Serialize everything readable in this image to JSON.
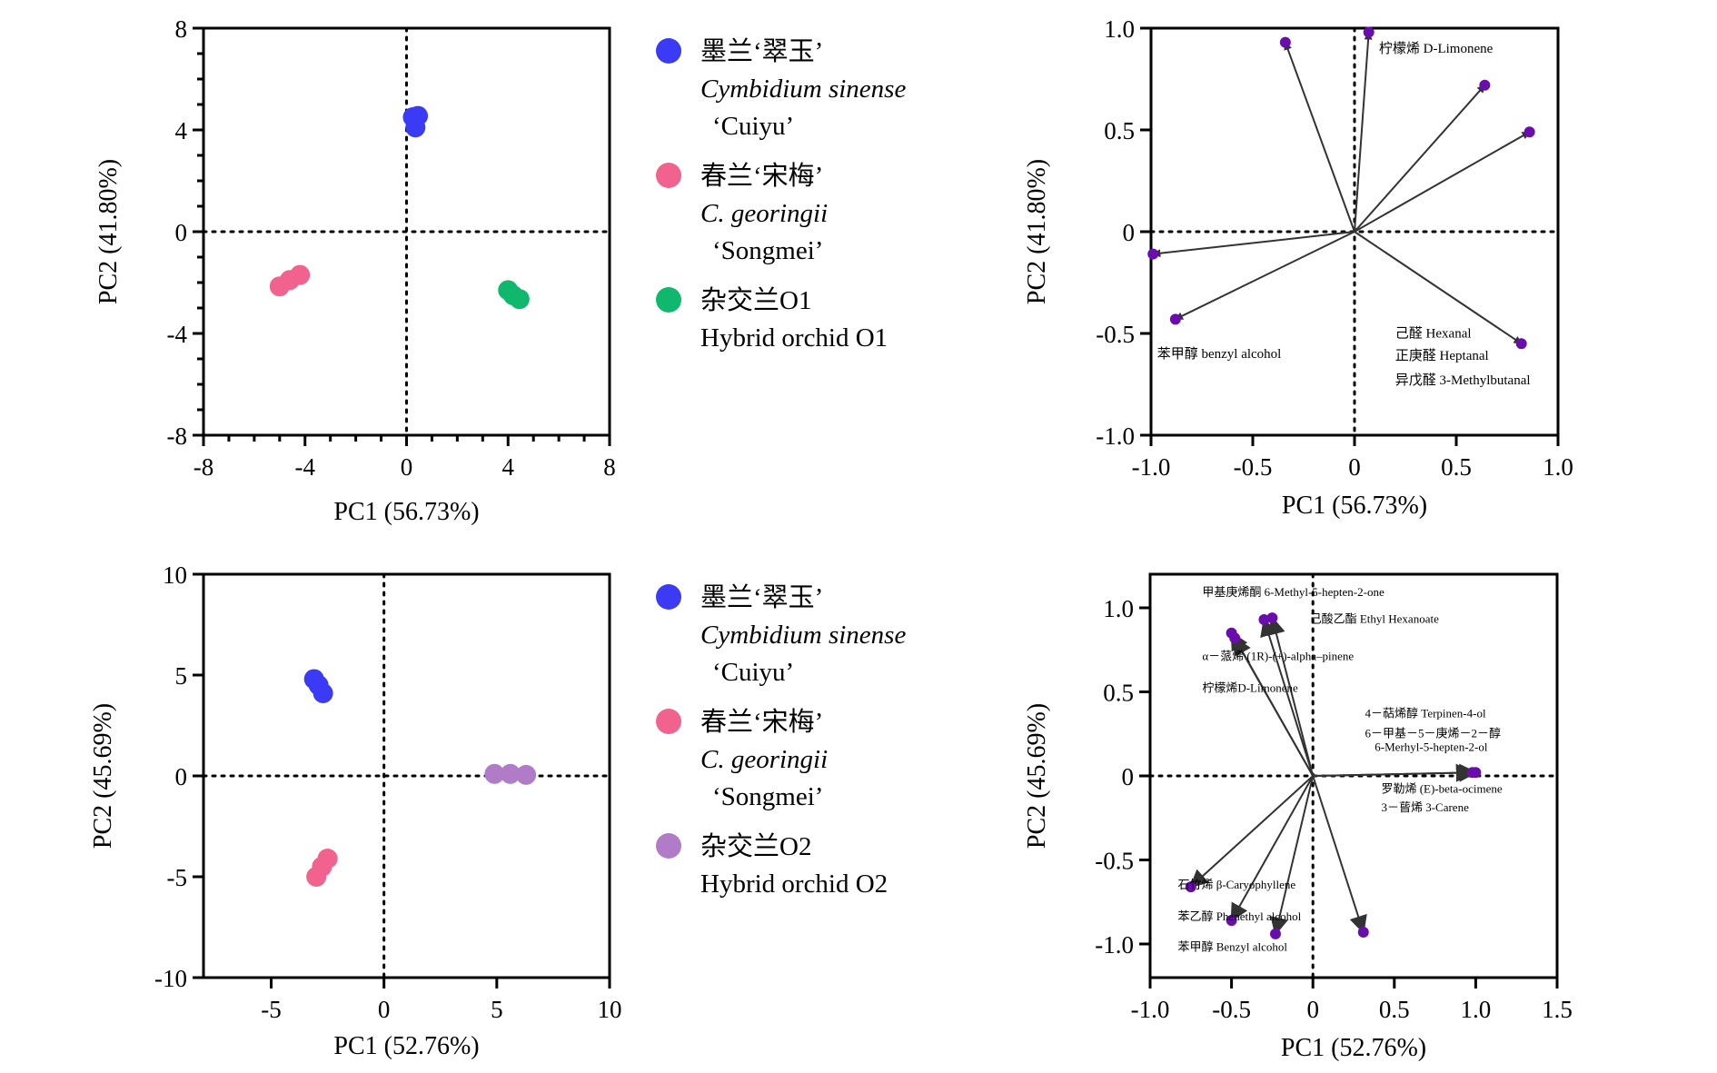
{
  "chart_data": [
    {
      "id": "tl",
      "type": "scatter",
      "xlabel": "PC1 (56.73%)",
      "ylabel": "PC2 (41.80%)",
      "xlim": [
        -8,
        8
      ],
      "ylim": [
        -8,
        8
      ],
      "xticks": [
        -8,
        -4,
        0,
        4,
        8
      ],
      "yticks": [
        -8,
        -4,
        0,
        4,
        8
      ],
      "xtick_labels": [
        "-8",
        "-4",
        "0",
        "4",
        "8"
      ],
      "ytick_labels": [
        "-8",
        "-4",
        "0",
        "4",
        "8"
      ],
      "minor_ticks": true,
      "series": [
        {
          "color": "#3b3bf5",
          "points": [
            [
              0.25,
              4.5
            ],
            [
              0.45,
              4.55
            ],
            [
              0.35,
              4.1
            ]
          ]
        },
        {
          "color": "#f2628f",
          "points": [
            [
              -5.0,
              -2.15
            ],
            [
              -4.6,
              -1.9
            ],
            [
              -4.2,
              -1.7
            ]
          ]
        },
        {
          "color": "#10b86e",
          "points": [
            [
              4.0,
              -2.3
            ],
            [
              4.2,
              -2.5
            ],
            [
              4.45,
              -2.65
            ]
          ]
        }
      ],
      "legend": {
        "placement": "right",
        "items": [
          {
            "color": "#3b3bf5",
            "lines": [
              "墨兰‘翠玉’",
              "Cymbidium sinense",
              "‘Cuiyu’"
            ]
          },
          {
            "color": "#f2628f",
            "lines": [
              "春兰‘宋梅’",
              "C. georingii",
              "‘Songmei’"
            ]
          },
          {
            "color": "#10b86e",
            "lines": [
              "杂交兰O1",
              "Hybrid orchid O1"
            ]
          }
        ]
      }
    },
    {
      "id": "tr",
      "type": "biplot",
      "xlabel": "PC1 (56.73%)",
      "ylabel": "PC2 (41.80%)",
      "xlim": [
        -1.0,
        1.0
      ],
      "ylim": [
        -1.0,
        1.0
      ],
      "xticks": [
        -1.0,
        -0.5,
        0,
        0.5,
        1.0
      ],
      "yticks": [
        -1.0,
        -0.5,
        0,
        0.5,
        1.0
      ],
      "xtick_labels": [
        "-1.0",
        "-0.5",
        "0",
        "0.5",
        "1.0"
      ],
      "ytick_labels": [
        "-1.0",
        "-0.5",
        "0",
        "0.5",
        "1.0"
      ],
      "vectors": [
        [
          -0.34,
          0.93
        ],
        [
          0.07,
          0.98
        ],
        [
          0.64,
          0.72
        ],
        [
          0.86,
          0.49
        ],
        [
          -0.99,
          -0.11
        ],
        [
          -0.88,
          -0.43
        ],
        [
          0.82,
          -0.55
        ]
      ],
      "annotations": [
        {
          "text": "柠檬烯 D-Limonene",
          "x": 0.12,
          "y": 0.88
        },
        {
          "text": "苯甲醇 benzyl alcohol",
          "x": -0.97,
          "y": -0.62
        },
        {
          "text": "己醛 Hexanal",
          "x": 0.2,
          "y": -0.52
        },
        {
          "text": "正庚醛 Heptanal",
          "x": 0.2,
          "y": -0.63
        },
        {
          "text": "异戊醛 3-Methylbutanal",
          "x": 0.2,
          "y": -0.75
        }
      ]
    },
    {
      "id": "bl",
      "type": "scatter",
      "xlabel": "PC1 (52.76%)",
      "ylabel": "PC2 (45.69%)",
      "xlim": [
        -8,
        10
      ],
      "ylim": [
        -10,
        10
      ],
      "xticks": [
        -5,
        0,
        5,
        10
      ],
      "yticks": [
        -10,
        -5,
        0,
        5,
        10
      ],
      "xtick_labels": [
        "-5",
        "0",
        "5",
        "10"
      ],
      "ytick_labels": [
        "-10",
        "-5",
        "0",
        "5",
        "10"
      ],
      "minor_ticks": false,
      "series": [
        {
          "color": "#3b3bf5",
          "points": [
            [
              -3.1,
              4.8
            ],
            [
              -2.9,
              4.5
            ],
            [
              -2.7,
              4.1
            ]
          ]
        },
        {
          "color": "#f2628f",
          "points": [
            [
              -3.0,
              -5.0
            ],
            [
              -2.75,
              -4.5
            ],
            [
              -2.5,
              -4.1
            ]
          ]
        },
        {
          "color": "#b07cc8",
          "points": [
            [
              4.9,
              0.1
            ],
            [
              5.6,
              0.1
            ],
            [
              6.3,
              0.05
            ]
          ]
        }
      ],
      "legend": {
        "placement": "right",
        "items": [
          {
            "color": "#3b3bf5",
            "lines": [
              "墨兰‘翠玉’",
              "Cymbidium sinense",
              "‘Cuiyu’"
            ]
          },
          {
            "color": "#f2628f",
            "lines": [
              "春兰‘宋梅’",
              "C. georingii",
              "‘Songmei’"
            ]
          },
          {
            "color": "#b07cc8",
            "lines": [
              "杂交兰O2",
              "Hybrid orchid O2"
            ]
          }
        ]
      }
    },
    {
      "id": "br",
      "type": "biplot",
      "xlabel": "PC1 (52.76%)",
      "ylabel": "PC2 (45.69%)",
      "xlim": [
        -1.0,
        1.5
      ],
      "ylim": [
        -1.2,
        1.2
      ],
      "xticks": [
        -1.0,
        -0.5,
        0,
        0.5,
        1.0,
        1.5
      ],
      "yticks": [
        -1.0,
        -0.5,
        0,
        0.5,
        1.0
      ],
      "xtick_labels": [
        "-1.0",
        "-0.5",
        "0",
        "0.5",
        "1.0",
        "1.5"
      ],
      "ytick_labels": [
        "-1.0",
        "-0.5",
        "0",
        "0.5",
        "1.0"
      ],
      "vectors": [
        [
          -0.25,
          0.94
        ],
        [
          -0.3,
          0.93
        ],
        [
          -0.5,
          0.85
        ],
        [
          -0.48,
          0.82
        ],
        [
          1.0,
          0.02
        ],
        [
          0.98,
          0.02
        ],
        [
          -0.75,
          -0.66
        ],
        [
          -0.5,
          -0.86
        ],
        [
          -0.23,
          -0.94
        ],
        [
          0.31,
          -0.93
        ]
      ],
      "annotations": [
        {
          "text": "甲基庚烯酮 6-Methyl-5-hepten-2-one",
          "x": -0.68,
          "y": 1.07
        },
        {
          "text": "己酸乙酯 Ethyl Hexanoate",
          "x": -0.02,
          "y": 0.91
        },
        {
          "text": "α－蒎烯 (1R)-(+)-alpha–pinene",
          "x": -0.68,
          "y": 0.69
        },
        {
          "text": "柠檬烯D-Limonene",
          "x": -0.68,
          "y": 0.5
        },
        {
          "text": "4－萜烯醇 Terpinen-4-ol",
          "x": 0.32,
          "y": 0.35
        },
        {
          "text": "6－甲基－5－庚烯－2－醇",
          "x": 0.32,
          "y": 0.23
        },
        {
          "text": "6-Merhyl-5-hepten-2-ol",
          "x": 0.38,
          "y": 0.15
        },
        {
          "text": "罗勒烯 (E)-beta-ocimene",
          "x": 0.42,
          "y": -0.1
        },
        {
          "text": "3－蒈烯 3-Carene",
          "x": 0.42,
          "y": -0.21
        },
        {
          "text": "石竹烯 β-Caryophyllene",
          "x": -0.83,
          "y": -0.67
        },
        {
          "text": "苯乙醇 Phenethyl alcohol",
          "x": -0.83,
          "y": -0.86
        },
        {
          "text": "苯甲醇 Benzyl alcohol",
          "x": -0.83,
          "y": -1.04
        }
      ]
    }
  ]
}
